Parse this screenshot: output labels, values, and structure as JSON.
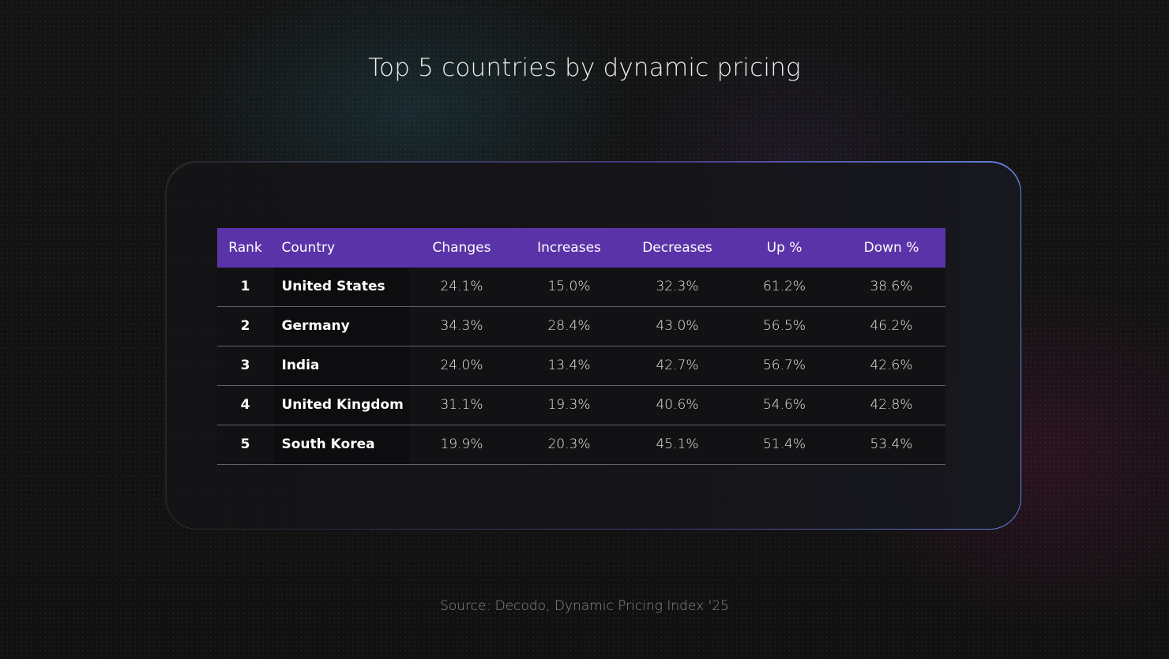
{
  "title": "Top 5 countries by dynamic pricing",
  "source": "Source: Decodo, Dynamic Pricing Index '25",
  "colors": {
    "header_bg": "#5b33a8",
    "background": "#121212",
    "card_border_accent": "#6e96ff"
  },
  "chart_data": {
    "type": "table",
    "title": "Top 5 countries by dynamic pricing",
    "columns": [
      "Rank",
      "Country",
      "Changes",
      "Increases",
      "Decreases",
      "Up %",
      "Down %"
    ],
    "rows": [
      [
        "1",
        "United States",
        "24.1%",
        "15.0%",
        "32.3%",
        "61.2%",
        "38.6%"
      ],
      [
        "2",
        "Germany",
        "34.3%",
        "28.4%",
        "43.0%",
        "56.5%",
        "46.2%"
      ],
      [
        "3",
        "India",
        "24.0%",
        "13.4%",
        "42.7%",
        "56.7%",
        "42.6%"
      ],
      [
        "4",
        "United Kingdom",
        "31.1%",
        "19.3%",
        "40.6%",
        "54.6%",
        "42.8%"
      ],
      [
        "5",
        "South Korea",
        "19.9%",
        "20.3%",
        "45.1%",
        "51.4%",
        "53.4%"
      ]
    ]
  }
}
